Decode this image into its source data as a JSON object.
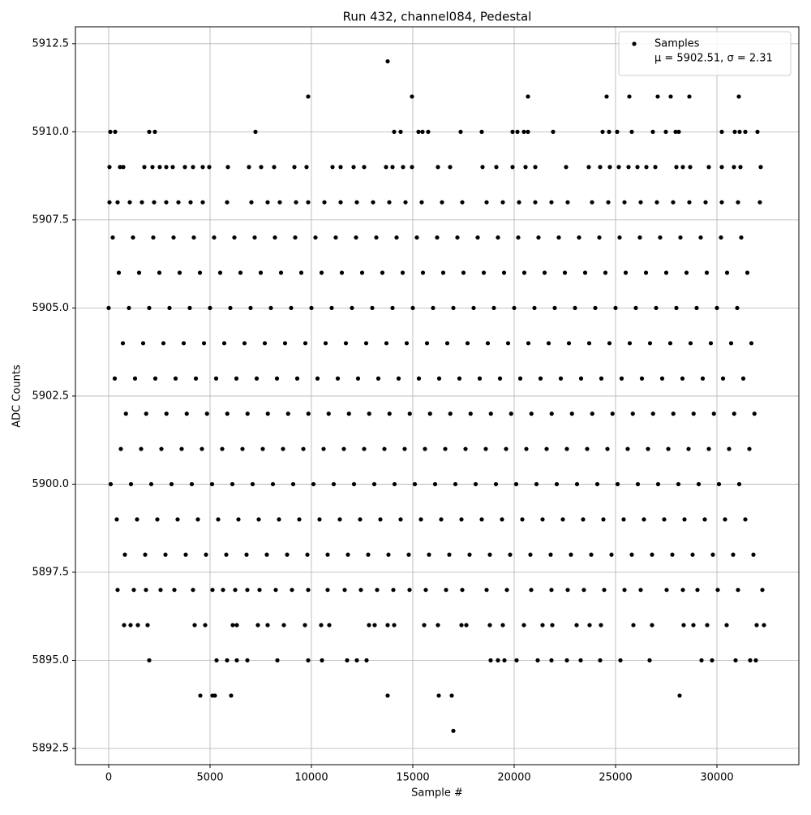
{
  "chart_data": {
    "type": "scatter",
    "title": "Run 432, channel084, Pedestal",
    "x_label": "Sample #",
    "y_label": "ADC Counts",
    "xlim": [
      -1640,
      34040
    ],
    "ylim": [
      5892.04,
      5912.98
    ],
    "xticks": [
      0,
      5000,
      10000,
      15000,
      20000,
      25000,
      30000
    ],
    "yticks": [
      {
        "value": 5892.5,
        "label": "5892.5"
      },
      {
        "value": 5895,
        "label": "5895.0"
      },
      5897.5,
      {
        "value": 5900,
        "label": "5900.0"
      },
      5902.5,
      {
        "value": 5905,
        "label": "5905.0"
      },
      5907.5,
      {
        "value": 5910,
        "label": "5910.0"
      },
      5912.5
    ],
    "grid": true,
    "legend": "upper right",
    "legend_note": "μ = 5902.51, σ = 2.31",
    "series": [
      {
        "name": "Samples",
        "color": "#000000",
        "x": [
          200,
          1200,
          2200,
          3200,
          4200,
          5200,
          6200,
          7200,
          8200,
          9200,
          10200,
          11200,
          12200,
          13200,
          14200,
          15200,
          16200,
          17200,
          18200,
          19200,
          20200,
          21200,
          22200,
          23200,
          24200,
          25200,
          26200,
          27200,
          28200,
          29200,
          30200,
          31200,
          500,
          1500,
          2500,
          3500,
          4500,
          5500,
          6500,
          7500,
          8500,
          9500,
          10500,
          11500,
          12500,
          13500,
          14500,
          15500,
          16500,
          17500,
          18500,
          19500,
          20500,
          21500,
          22500,
          23500,
          24500,
          25500,
          26500,
          27500,
          28500,
          29500,
          30500,
          31500,
          0,
          1000,
          2000,
          3000,
          4000,
          5000,
          6000,
          7000,
          8000,
          9000,
          10000,
          11000,
          12000,
          13000,
          14000,
          15000,
          16000,
          17000,
          18000,
          19000,
          20000,
          21000,
          22000,
          23000,
          24000,
          25000,
          26000,
          27000,
          28000,
          29000,
          30000,
          31000,
          700,
          1700,
          2700,
          3700,
          4700,
          5700,
          6700,
          7700,
          8700,
          9700,
          10700,
          11700,
          12700,
          13700,
          14700,
          15700,
          16700,
          17700,
          18700,
          19700,
          20700,
          21700,
          22700,
          23700,
          24700,
          25700,
          26700,
          27700,
          28700,
          29700,
          30700,
          31700,
          300,
          1300,
          2300,
          3300,
          4300,
          5300,
          6300,
          7300,
          8300,
          9300,
          10300,
          11300,
          12300,
          13300,
          14300,
          15300,
          16300,
          17300,
          18300,
          19300,
          20300,
          21300,
          22300,
          23300,
          24300,
          25300,
          26300,
          27300,
          28300,
          29300,
          30300,
          31300,
          850,
          1850,
          2850,
          3850,
          4850,
          5850,
          6850,
          7850,
          8850,
          9850,
          10850,
          11850,
          12850,
          13850,
          14850,
          15850,
          16850,
          17850,
          18850,
          19850,
          20850,
          21850,
          22850,
          23850,
          24850,
          25850,
          26850,
          27850,
          28850,
          29850,
          30850,
          31850,
          600,
          1600,
          2600,
          3600,
          4600,
          5600,
          6600,
          7600,
          8600,
          9600,
          10600,
          11600,
          12600,
          13600,
          14600,
          15600,
          16600,
          17600,
          18600,
          19600,
          20600,
          21600,
          22600,
          23600,
          24600,
          25600,
          26600,
          27600,
          28600,
          29600,
          30600,
          31600,
          100,
          1100,
          2100,
          3100,
          4100,
          5100,
          6100,
          7100,
          8100,
          9100,
          10100,
          11100,
          12100,
          13100,
          14100,
          15100,
          16100,
          17100,
          18100,
          19100,
          20100,
          21100,
          22100,
          23100,
          24100,
          25100,
          26100,
          27100,
          28100,
          29100,
          30100,
          31100,
          400,
          1400,
          2400,
          3400,
          4400,
          5400,
          6400,
          7400,
          8400,
          9400,
          10400,
          11400,
          12400,
          13400,
          14400,
          15400,
          16400,
          17400,
          18400,
          19400,
          20400,
          21400,
          22400,
          23400,
          24400,
          25400,
          26400,
          27400,
          28400,
          29400,
          30400,
          31400,
          800,
          1800,
          2800,
          3800,
          4800,
          5800,
          6800,
          7800,
          8800,
          9800,
          10800,
          11800,
          12800,
          13800,
          14800,
          15800,
          16800,
          17800,
          18800,
          19800,
          20800,
          21800,
          22800,
          23800,
          24800,
          25800,
          26800,
          27800,
          28800,
          29800,
          30800,
          31800,
          13760,
          9840,
          14960,
          20680,
          24560,
          25680,
          27080,
          27720,
          28640,
          31080,
          80,
          320,
          2000,
          2280,
          7240,
          14080,
          14400,
          15280,
          15480,
          15760,
          17360,
          18400,
          19920,
          20160,
          20480,
          20680,
          21920,
          24360,
          24680,
          25080,
          25800,
          26840,
          27480,
          27960,
          28120,
          30240,
          30880,
          31120,
          31400,
          32000,
          40,
          560,
          720,
          1760,
          2160,
          2520,
          2840,
          3160,
          3760,
          4160,
          4640,
          4960,
          5880,
          6920,
          7520,
          8160,
          9160,
          9760,
          11040,
          11440,
          12080,
          12600,
          13680,
          14000,
          14520,
          14960,
          16240,
          16840,
          18440,
          19120,
          19920,
          20560,
          21040,
          22560,
          23680,
          24240,
          24720,
          25160,
          25640,
          26080,
          26520,
          26960,
          28000,
          28320,
          28680,
          29600,
          30240,
          30840,
          31160,
          32160,
          40,
          440,
          1040,
          1640,
          2240,
          2840,
          3440,
          4040,
          4640,
          5840,
          7040,
          7840,
          8440,
          9240,
          9840,
          10640,
          11440,
          12240,
          13040,
          13840,
          14640,
          15440,
          16440,
          17440,
          18640,
          19440,
          20240,
          21040,
          21840,
          22640,
          23840,
          24640,
          25440,
          26240,
          27040,
          27840,
          28640,
          29440,
          30240,
          31040,
          32120,
          440,
          1240,
          1840,
          2560,
          3240,
          4160,
          5120,
          5640,
          6240,
          6840,
          7440,
          8240,
          9040,
          9840,
          10800,
          11640,
          12440,
          13240,
          14040,
          14840,
          15640,
          16640,
          17440,
          18640,
          19640,
          20840,
          21840,
          22640,
          23440,
          24440,
          25440,
          26240,
          27520,
          28320,
          29040,
          30040,
          31040,
          32240,
          760,
          1080,
          1440,
          1920,
          4240,
          4760,
          6120,
          6320,
          7360,
          7840,
          8640,
          9680,
          10480,
          10880,
          12840,
          13120,
          13760,
          14080,
          15560,
          16240,
          17400,
          17640,
          18800,
          19440,
          20480,
          21400,
          21880,
          23080,
          23720,
          24280,
          25880,
          26800,
          28360,
          28840,
          29520,
          30480,
          31960,
          32320,
          2000,
          5320,
          5840,
          6320,
          6840,
          8320,
          9840,
          10520,
          11760,
          12240,
          12720,
          18840,
          19200,
          19520,
          20120,
          21160,
          21840,
          22600,
          23280,
          24240,
          25240,
          26680,
          29240,
          29760,
          30920,
          31640,
          31920,
          4520,
          5120,
          5240,
          6040,
          13760,
          16280,
          16920,
          28160,
          17000
        ],
        "values": [
          5907,
          5907,
          5907,
          5907,
          5907,
          5907,
          5907,
          5907,
          5907,
          5907,
          5907,
          5907,
          5907,
          5907,
          5907,
          5907,
          5907,
          5907,
          5907,
          5907,
          5907,
          5907,
          5907,
          5907,
          5907,
          5907,
          5907,
          5907,
          5907,
          5907,
          5907,
          5907,
          5906,
          5906,
          5906,
          5906,
          5906,
          5906,
          5906,
          5906,
          5906,
          5906,
          5906,
          5906,
          5906,
          5906,
          5906,
          5906,
          5906,
          5906,
          5906,
          5906,
          5906,
          5906,
          5906,
          5906,
          5906,
          5906,
          5906,
          5906,
          5906,
          5906,
          5906,
          5906,
          5905,
          5905,
          5905,
          5905,
          5905,
          5905,
          5905,
          5905,
          5905,
          5905,
          5905,
          5905,
          5905,
          5905,
          5905,
          5905,
          5905,
          5905,
          5905,
          5905,
          5905,
          5905,
          5905,
          5905,
          5905,
          5905,
          5905,
          5905,
          5905,
          5905,
          5905,
          5905,
          5904,
          5904,
          5904,
          5904,
          5904,
          5904,
          5904,
          5904,
          5904,
          5904,
          5904,
          5904,
          5904,
          5904,
          5904,
          5904,
          5904,
          5904,
          5904,
          5904,
          5904,
          5904,
          5904,
          5904,
          5904,
          5904,
          5904,
          5904,
          5904,
          5904,
          5904,
          5904,
          5903,
          5903,
          5903,
          5903,
          5903,
          5903,
          5903,
          5903,
          5903,
          5903,
          5903,
          5903,
          5903,
          5903,
          5903,
          5903,
          5903,
          5903,
          5903,
          5903,
          5903,
          5903,
          5903,
          5903,
          5903,
          5903,
          5903,
          5903,
          5903,
          5903,
          5903,
          5903,
          5902,
          5902,
          5902,
          5902,
          5902,
          5902,
          5902,
          5902,
          5902,
          5902,
          5902,
          5902,
          5902,
          5902,
          5902,
          5902,
          5902,
          5902,
          5902,
          5902,
          5902,
          5902,
          5902,
          5902,
          5902,
          5902,
          5902,
          5902,
          5902,
          5902,
          5902,
          5902,
          5901,
          5901,
          5901,
          5901,
          5901,
          5901,
          5901,
          5901,
          5901,
          5901,
          5901,
          5901,
          5901,
          5901,
          5901,
          5901,
          5901,
          5901,
          5901,
          5901,
          5901,
          5901,
          5901,
          5901,
          5901,
          5901,
          5901,
          5901,
          5901,
          5901,
          5901,
          5901,
          5900,
          5900,
          5900,
          5900,
          5900,
          5900,
          5900,
          5900,
          5900,
          5900,
          5900,
          5900,
          5900,
          5900,
          5900,
          5900,
          5900,
          5900,
          5900,
          5900,
          5900,
          5900,
          5900,
          5900,
          5900,
          5900,
          5900,
          5900,
          5900,
          5900,
          5900,
          5900,
          5899,
          5899,
          5899,
          5899,
          5899,
          5899,
          5899,
          5899,
          5899,
          5899,
          5899,
          5899,
          5899,
          5899,
          5899,
          5899,
          5899,
          5899,
          5899,
          5899,
          5899,
          5899,
          5899,
          5899,
          5899,
          5899,
          5899,
          5899,
          5899,
          5899,
          5899,
          5899,
          5898,
          5898,
          5898,
          5898,
          5898,
          5898,
          5898,
          5898,
          5898,
          5898,
          5898,
          5898,
          5898,
          5898,
          5898,
          5898,
          5898,
          5898,
          5898,
          5898,
          5898,
          5898,
          5898,
          5898,
          5898,
          5898,
          5898,
          5898,
          5898,
          5898,
          5898,
          5898,
          5912,
          5911,
          5911,
          5911,
          5911,
          5911,
          5911,
          5911,
          5911,
          5911,
          5910,
          5910,
          5910,
          5910,
          5910,
          5910,
          5910,
          5910,
          5910,
          5910,
          5910,
          5910,
          5910,
          5910,
          5910,
          5910,
          5910,
          5910,
          5910,
          5910,
          5910,
          5910,
          5910,
          5910,
          5910,
          5910,
          5910,
          5910,
          5910,
          5910,
          5909,
          5909,
          5909,
          5909,
          5909,
          5909,
          5909,
          5909,
          5909,
          5909,
          5909,
          5909,
          5909,
          5909,
          5909,
          5909,
          5909,
          5909,
          5909,
          5909,
          5909,
          5909,
          5909,
          5909,
          5909,
          5909,
          5909,
          5909,
          5909,
          5909,
          5909,
          5909,
          5909,
          5909,
          5909,
          5909,
          5909,
          5909,
          5909,
          5909,
          5909,
          5909,
          5909,
          5909,
          5909,
          5909,
          5909,
          5909,
          5909,
          5909,
          5908,
          5908,
          5908,
          5908,
          5908,
          5908,
          5908,
          5908,
          5908,
          5908,
          5908,
          5908,
          5908,
          5908,
          5908,
          5908,
          5908,
          5908,
          5908,
          5908,
          5908,
          5908,
          5908,
          5908,
          5908,
          5908,
          5908,
          5908,
          5908,
          5908,
          5908,
          5908,
          5908,
          5908,
          5908,
          5908,
          5908,
          5908,
          5908,
          5908,
          5908,
          5897,
          5897,
          5897,
          5897,
          5897,
          5897,
          5897,
          5897,
          5897,
          5897,
          5897,
          5897,
          5897,
          5897,
          5897,
          5897,
          5897,
          5897,
          5897,
          5897,
          5897,
          5897,
          5897,
          5897,
          5897,
          5897,
          5897,
          5897,
          5897,
          5897,
          5897,
          5897,
          5897,
          5897,
          5897,
          5897,
          5897,
          5897,
          5896,
          5896,
          5896,
          5896,
          5896,
          5896,
          5896,
          5896,
          5896,
          5896,
          5896,
          5896,
          5896,
          5896,
          5896,
          5896,
          5896,
          5896,
          5896,
          5896,
          5896,
          5896,
          5896,
          5896,
          5896,
          5896,
          5896,
          5896,
          5896,
          5896,
          5896,
          5896,
          5896,
          5896,
          5896,
          5896,
          5896,
          5896,
          5895,
          5895,
          5895,
          5895,
          5895,
          5895,
          5895,
          5895,
          5895,
          5895,
          5895,
          5895,
          5895,
          5895,
          5895,
          5895,
          5895,
          5895,
          5895,
          5895,
          5895,
          5895,
          5895,
          5895,
          5895,
          5895,
          5895,
          5894,
          5894,
          5894,
          5894,
          5894,
          5894,
          5894,
          5894,
          5893
        ]
      }
    ]
  }
}
